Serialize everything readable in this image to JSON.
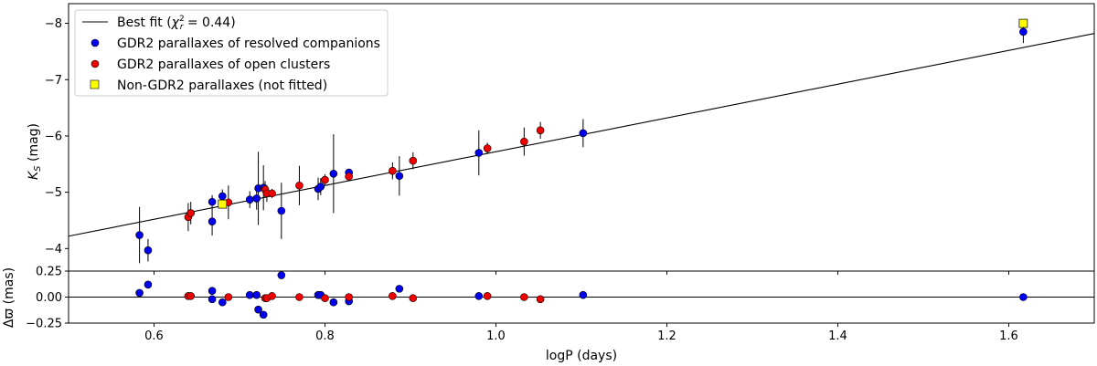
{
  "chart_data": {
    "type": "scatter",
    "top_panel": {
      "ylabel": "K_S (mag)",
      "ylim": [
        -3.6,
        -8.35
      ],
      "yticks": [
        -4,
        -5,
        -6,
        -7,
        -8
      ],
      "ytick_labels": [
        "−4",
        "−5",
        "−6",
        "−7",
        "−8"
      ],
      "fit_line": {
        "name": "Best fit (χ²r = 0.44)",
        "slope": -3.0,
        "intercept": -2.72
      },
      "series": [
        {
          "name": "GDR2 parallaxes of resolved companions",
          "color": "#0000ee",
          "points": [
            {
              "x": 0.583,
              "y": -4.24,
              "err": 0.5
            },
            {
              "x": 0.593,
              "y": -3.97,
              "err": 0.2
            },
            {
              "x": 0.668,
              "y": -4.83,
              "err": 0.12
            },
            {
              "x": 0.668,
              "y": -4.48,
              "err": 0.25
            },
            {
              "x": 0.68,
              "y": -4.93,
              "err": 0.12
            },
            {
              "x": 0.712,
              "y": -4.87,
              "err": 0.15
            },
            {
              "x": 0.72,
              "y": -4.89,
              "err": 0.2
            },
            {
              "x": 0.722,
              "y": -5.07,
              "err": 0.65
            },
            {
              "x": 0.728,
              "y": -5.08,
              "err": 0.4
            },
            {
              "x": 0.749,
              "y": -4.67,
              "err": 0.5
            },
            {
              "x": 0.792,
              "y": -5.06,
              "err": 0.2
            },
            {
              "x": 0.795,
              "y": -5.1,
              "err": 0.15
            },
            {
              "x": 0.81,
              "y": -5.33,
              "err": 0.7
            },
            {
              "x": 0.828,
              "y": -5.35,
              "err": 0.05
            },
            {
              "x": 0.887,
              "y": -5.29,
              "err": 0.35
            },
            {
              "x": 0.98,
              "y": -5.7,
              "err": 0.4
            },
            {
              "x": 1.102,
              "y": -6.05,
              "err": 0.25
            },
            {
              "x": 1.617,
              "y": -7.85,
              "err": 0.2
            }
          ]
        },
        {
          "name": "GDR2 parallaxes of open clusters",
          "color": "#ee0000",
          "points": [
            {
              "x": 0.64,
              "y": -4.56,
              "err": 0.25
            },
            {
              "x": 0.643,
              "y": -4.63,
              "err": 0.2
            },
            {
              "x": 0.687,
              "y": -4.82,
              "err": 0.3
            },
            {
              "x": 0.73,
              "y": -5.05,
              "err": 0.15
            },
            {
              "x": 0.732,
              "y": -4.98,
              "err": 0.15
            },
            {
              "x": 0.738,
              "y": -4.98,
              "err": 0.08
            },
            {
              "x": 0.77,
              "y": -5.12,
              "err": 0.35
            },
            {
              "x": 0.8,
              "y": -5.22,
              "err": 0.1
            },
            {
              "x": 0.828,
              "y": -5.28,
              "err": 0.08
            },
            {
              "x": 0.879,
              "y": -5.38,
              "err": 0.15
            },
            {
              "x": 0.903,
              "y": -5.56,
              "err": 0.15
            },
            {
              "x": 0.99,
              "y": -5.78,
              "err": 0.1
            },
            {
              "x": 1.033,
              "y": -5.9,
              "err": 0.25
            },
            {
              "x": 1.052,
              "y": -6.1,
              "err": 0.15
            }
          ]
        },
        {
          "name": "Non-GDR2 parallaxes (not fitted)",
          "color": "#ffff00",
          "marker": "square",
          "points": [
            {
              "x": 0.68,
              "y": -4.79
            },
            {
              "x": 1.617,
              "y": -8.0
            }
          ]
        }
      ]
    },
    "bottom_panel": {
      "ylabel": "Δϖ (mas)",
      "ylim": [
        -0.25,
        0.25
      ],
      "yticks": [
        -0.25,
        0.0,
        0.25
      ],
      "ytick_labels": [
        "−0.25",
        "0.00",
        "0.25"
      ],
      "series": [
        {
          "name": "GDR2 parallaxes of resolved companions",
          "color": "#0000ee",
          "points": [
            {
              "x": 0.583,
              "y": 0.04
            },
            {
              "x": 0.593,
              "y": 0.12
            },
            {
              "x": 0.668,
              "y": 0.06
            },
            {
              "x": 0.668,
              "y": -0.02
            },
            {
              "x": 0.68,
              "y": -0.05
            },
            {
              "x": 0.712,
              "y": 0.02
            },
            {
              "x": 0.72,
              "y": 0.02
            },
            {
              "x": 0.722,
              "y": -0.12
            },
            {
              "x": 0.728,
              "y": -0.17
            },
            {
              "x": 0.749,
              "y": 0.21
            },
            {
              "x": 0.792,
              "y": 0.02
            },
            {
              "x": 0.795,
              "y": 0.02
            },
            {
              "x": 0.81,
              "y": -0.05
            },
            {
              "x": 0.828,
              "y": -0.04
            },
            {
              "x": 0.887,
              "y": 0.08
            },
            {
              "x": 0.98,
              "y": 0.01
            },
            {
              "x": 1.102,
              "y": 0.02
            },
            {
              "x": 1.617,
              "y": 0.0
            }
          ]
        },
        {
          "name": "GDR2 parallaxes of open clusters",
          "color": "#ee0000",
          "points": [
            {
              "x": 0.64,
              "y": 0.01
            },
            {
              "x": 0.643,
              "y": 0.01
            },
            {
              "x": 0.687,
              "y": 0.0
            },
            {
              "x": 0.73,
              "y": -0.01
            },
            {
              "x": 0.732,
              "y": -0.01
            },
            {
              "x": 0.738,
              "y": 0.01
            },
            {
              "x": 0.77,
              "y": 0.0
            },
            {
              "x": 0.8,
              "y": -0.01
            },
            {
              "x": 0.828,
              "y": 0.0
            },
            {
              "x": 0.879,
              "y": 0.01
            },
            {
              "x": 0.903,
              "y": -0.01
            },
            {
              "x": 0.99,
              "y": 0.01
            },
            {
              "x": 1.033,
              "y": 0.0
            },
            {
              "x": 1.052,
              "y": -0.02
            }
          ]
        }
      ]
    },
    "xlabel": "logP (days)",
    "xlim": [
      0.5,
      1.7
    ],
    "xticks": [
      0.6,
      0.8,
      1.0,
      1.2,
      1.4,
      1.6
    ],
    "xtick_labels": [
      "0.6",
      "0.8",
      "1.0",
      "1.2",
      "1.4",
      "1.6"
    ],
    "legend": {
      "placement": "top-left",
      "fit_label_prefix": "Best fit (",
      "fit_label_chi": "χ",
      "fit_label_sup": "2",
      "fit_label_sub": "r",
      "fit_label_suffix": " = 0.44)",
      "companions_label": "GDR2 parallaxes of resolved companions",
      "clusters_label": "GDR2 parallaxes of open clusters",
      "nongdr2_label": "Non-GDR2 parallaxes (not fitted)"
    }
  }
}
